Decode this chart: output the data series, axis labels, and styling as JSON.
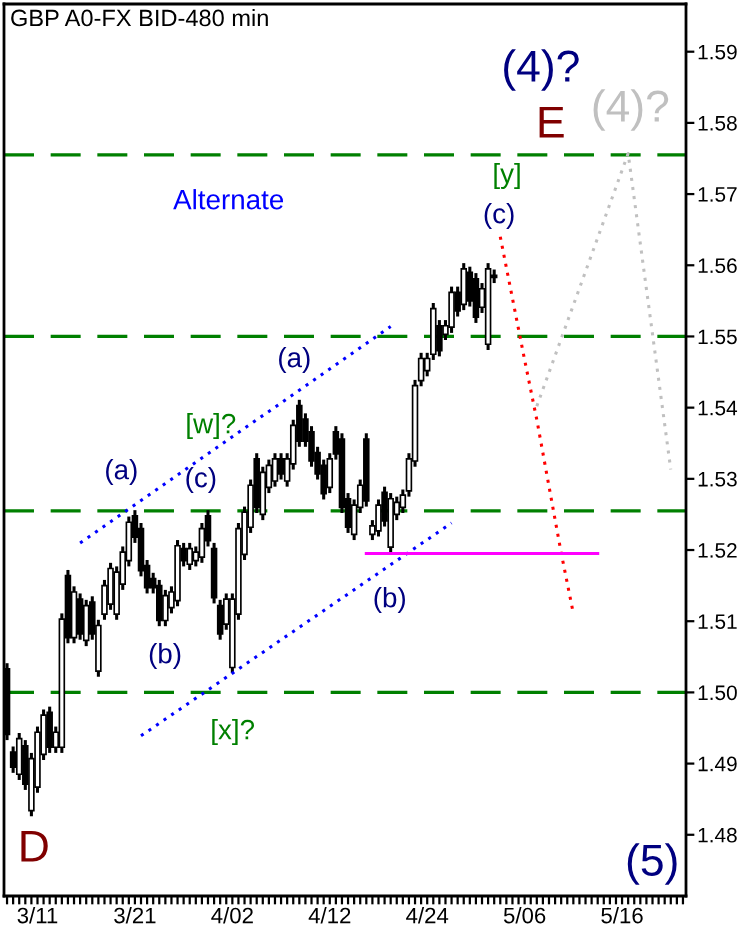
{
  "chart_data": {
    "type": "candlestick",
    "title": "GBP A0-FX BID-480 min",
    "categories": [
      null,
      null,
      null,
      null,
      null,
      "3/11",
      null,
      null,
      null,
      null,
      null,
      null,
      null,
      null,
      null,
      null,
      null,
      null,
      null,
      null,
      null,
      "3/21",
      null,
      null,
      null,
      null,
      null,
      null,
      null,
      null,
      null,
      null,
      null,
      null,
      null,
      null,
      null,
      "4/02",
      null,
      null,
      null,
      null,
      null,
      null,
      null,
      null,
      null,
      null,
      null,
      null,
      null,
      null,
      null,
      "4/12",
      null,
      null,
      null,
      null,
      null,
      null,
      null,
      null,
      null,
      null,
      null,
      null,
      null,
      null,
      null,
      "4/24",
      null,
      null,
      null,
      null,
      null,
      null,
      null,
      null,
      null,
      null,
      null,
      null,
      null,
      null,
      null,
      "5/06",
      null,
      null,
      null,
      null,
      null,
      null,
      null,
      null,
      null,
      null,
      null,
      null,
      null,
      null,
      null,
      "5/16",
      null,
      null,
      null,
      null,
      null,
      null,
      null,
      null,
      null,
      null
    ],
    "ohlc": [
      [
        1.5033,
        1.5041,
        1.4933,
        1.4941
      ],
      [
        1.4916,
        1.4924,
        1.4887,
        1.4895
      ],
      [
        1.4885,
        1.4943,
        1.4877,
        1.4935
      ],
      [
        1.4925,
        1.4933,
        1.4863,
        1.4871
      ],
      [
        1.4834,
        1.4915,
        1.4826,
        1.4907
      ],
      [
        1.4867,
        1.4952,
        1.4859,
        1.4944
      ],
      [
        1.4913,
        1.4976,
        1.4905,
        1.4968
      ],
      [
        1.4972,
        1.498,
        1.4915,
        1.4923
      ],
      [
        1.4923,
        1.4952,
        1.4915,
        1.4944
      ],
      [
        1.4923,
        1.5111,
        1.4915,
        1.5103
      ],
      [
        1.5164,
        1.5172,
        1.5069,
        1.5077
      ],
      [
        1.5077,
        1.5149,
        1.5069,
        1.5141
      ],
      [
        1.5131,
        1.5139,
        1.5074,
        1.5082
      ],
      [
        1.5073,
        1.513,
        1.5065,
        1.5122
      ],
      [
        1.5127,
        1.5135,
        1.5074,
        1.5082
      ],
      [
        1.503,
        1.5102,
        1.5022,
        1.5094
      ],
      [
        1.511,
        1.5158,
        1.5102,
        1.515
      ],
      [
        1.5124,
        1.5182,
        1.5116,
        1.5174
      ],
      [
        1.511,
        1.5177,
        1.5102,
        1.5169
      ],
      [
        1.5152,
        1.5205,
        1.5144,
        1.5197
      ],
      [
        1.5185,
        1.5247,
        1.5177,
        1.5239
      ],
      [
        1.5248,
        1.5256,
        1.521,
        1.5218
      ],
      [
        1.523,
        1.5238,
        1.5163,
        1.5171
      ],
      [
        1.5178,
        1.5186,
        1.5139,
        1.5147
      ],
      [
        1.516,
        1.5168,
        1.5139,
        1.5147
      ],
      [
        1.515,
        1.5158,
        1.5093,
        1.5101
      ],
      [
        1.5101,
        1.5144,
        1.5093,
        1.5136
      ],
      [
        1.5119,
        1.5149,
        1.5111,
        1.5141
      ],
      [
        1.5129,
        1.5214,
        1.5121,
        1.5206
      ],
      [
        1.5202,
        1.521,
        1.5177,
        1.5185
      ],
      [
        1.518,
        1.521,
        1.5172,
        1.5202
      ],
      [
        1.5185,
        1.5205,
        1.5177,
        1.5197
      ],
      [
        1.519,
        1.5238,
        1.5182,
        1.523
      ],
      [
        1.5248,
        1.5256,
        1.5205,
        1.5213
      ],
      [
        1.5202,
        1.521,
        1.5125,
        1.5133
      ],
      [
        1.5122,
        1.513,
        1.5074,
        1.5082
      ],
      [
        1.5096,
        1.5139,
        1.5088,
        1.5131
      ],
      [
        1.5035,
        1.5139,
        1.5027,
        1.5131
      ],
      [
        1.511,
        1.5238,
        1.5102,
        1.523
      ],
      [
        1.5194,
        1.5261,
        1.5186,
        1.5253
      ],
      [
        1.5232,
        1.5299,
        1.5224,
        1.5291
      ],
      [
        1.5328,
        1.5336,
        1.5252,
        1.526
      ],
      [
        1.525,
        1.5317,
        1.5242,
        1.5309
      ],
      [
        1.5288,
        1.5327,
        1.528,
        1.5319
      ],
      [
        1.5297,
        1.5336,
        1.5289,
        1.5328
      ],
      [
        1.5328,
        1.5336,
        1.5299,
        1.5307
      ],
      [
        1.5297,
        1.5336,
        1.5289,
        1.5328
      ],
      [
        1.5321,
        1.5383,
        1.5313,
        1.5375
      ],
      [
        1.5403,
        1.5411,
        1.5345,
        1.5353
      ],
      [
        1.5384,
        1.5392,
        1.5345,
        1.5353
      ],
      [
        1.5366,
        1.5374,
        1.5317,
        1.5325
      ],
      [
        1.5337,
        1.5345,
        1.5299,
        1.5307
      ],
      [
        1.5319,
        1.5327,
        1.5271,
        1.5279
      ],
      [
        1.5288,
        1.5336,
        1.528,
        1.5328
      ],
      [
        1.5366,
        1.5374,
        1.5327,
        1.5335
      ],
      [
        1.5356,
        1.5364,
        1.5252,
        1.526
      ],
      [
        1.5272,
        1.528,
        1.5224,
        1.5232
      ],
      [
        1.5222,
        1.5271,
        1.5214,
        1.5263
      ],
      [
        1.526,
        1.5299,
        1.5252,
        1.5291
      ],
      [
        1.5356,
        1.5364,
        1.5261,
        1.5269
      ],
      [
        1.5222,
        1.5242,
        1.5214,
        1.5234
      ],
      [
        1.5227,
        1.5271,
        1.5219,
        1.5263
      ],
      [
        1.5281,
        1.5289,
        1.5233,
        1.5241
      ],
      [
        1.5204,
        1.528,
        1.5196,
        1.5272
      ],
      [
        1.525,
        1.5275,
        1.5242,
        1.5267
      ],
      [
        1.526,
        1.5285,
        1.5252,
        1.5277
      ],
      [
        1.5283,
        1.5336,
        1.5275,
        1.5328
      ],
      [
        1.5325,
        1.5439,
        1.5317,
        1.5431
      ],
      [
        1.5438,
        1.5477,
        1.543,
        1.5469
      ],
      [
        1.5452,
        1.5477,
        1.5444,
        1.5469
      ],
      [
        1.5475,
        1.5547,
        1.5467,
        1.5539
      ],
      [
        1.5515,
        1.5523,
        1.5472,
        1.548
      ],
      [
        1.5503,
        1.5523,
        1.5495,
        1.5515
      ],
      [
        1.5513,
        1.557,
        1.5505,
        1.5562
      ],
      [
        1.5562,
        1.557,
        1.5528,
        1.5536
      ],
      [
        1.5545,
        1.5603,
        1.5537,
        1.5595
      ],
      [
        1.559,
        1.5598,
        1.5542,
        1.555
      ],
      [
        1.5581,
        1.5589,
        1.5519,
        1.5527
      ],
      [
        1.5541,
        1.5575,
        1.5533,
        1.5567
      ],
      [
        1.5489,
        1.5603,
        1.5481,
        1.5595
      ],
      [
        1.5586,
        1.5594,
        1.5575,
        1.5583
      ],
      null,
      null,
      null,
      null,
      null,
      null,
      null,
      null,
      null,
      null,
      null,
      null,
      null,
      null,
      null,
      null,
      null,
      null,
      null,
      null,
      null,
      null,
      null,
      null,
      null,
      null,
      null,
      null,
      null,
      null,
      null
    ],
    "series": [
      {
        "type": "line",
        "color": "#0000ff",
        "line_style": "dotted",
        "values": [
          null,
          null,
          null,
          null,
          null,
          null,
          null,
          null,
          null,
          null,
          null,
          null,
          1.521,
          null,
          null,
          null,
          null,
          null,
          null,
          null,
          null,
          null,
          null,
          null,
          null,
          null,
          null,
          null,
          null,
          null,
          null,
          null,
          null,
          null,
          null,
          null,
          null,
          null,
          null,
          null,
          null,
          null,
          null,
          null,
          null,
          null,
          null,
          null,
          null,
          null,
          null,
          null,
          null,
          null,
          null,
          null,
          null,
          null,
          null,
          null,
          null,
          null,
          null,
          1.5514,
          null,
          null,
          null,
          null,
          null,
          null,
          null,
          null,
          null,
          null,
          null,
          null,
          null,
          null,
          null,
          null,
          null,
          null,
          null,
          null,
          null,
          null,
          null,
          null,
          null,
          null,
          null,
          null,
          null,
          null,
          null,
          null,
          null,
          null,
          null,
          null,
          null,
          null,
          null,
          null,
          null,
          null,
          null,
          null,
          null,
          null,
          null,
          null
        ]
      },
      {
        "type": "line",
        "color": "#0000ff",
        "line_style": "dotted",
        "values": [
          null,
          null,
          null,
          null,
          null,
          null,
          null,
          null,
          null,
          null,
          null,
          null,
          null,
          null,
          null,
          null,
          null,
          null,
          null,
          null,
          null,
          null,
          1.4939,
          null,
          null,
          null,
          null,
          null,
          null,
          null,
          null,
          null,
          null,
          null,
          null,
          null,
          null,
          null,
          null,
          null,
          null,
          null,
          null,
          null,
          null,
          null,
          null,
          null,
          null,
          null,
          null,
          null,
          null,
          null,
          null,
          null,
          null,
          null,
          null,
          null,
          null,
          null,
          null,
          null,
          null,
          null,
          null,
          null,
          null,
          null,
          null,
          null,
          null,
          1.5238,
          null,
          null,
          null,
          null,
          null,
          null,
          null,
          null,
          null,
          null,
          null,
          null,
          null,
          null,
          null,
          null,
          null,
          null,
          null,
          null,
          null,
          null,
          null,
          null,
          null,
          null,
          null,
          null,
          null,
          null,
          null,
          null,
          null,
          null,
          null,
          null,
          null,
          null
        ]
      },
      {
        "type": "line",
        "color": "#ff0000",
        "line_style": "dotted",
        "values": [
          null,
          null,
          null,
          null,
          null,
          null,
          null,
          null,
          null,
          null,
          null,
          null,
          null,
          null,
          null,
          null,
          null,
          null,
          null,
          null,
          null,
          null,
          null,
          null,
          null,
          null,
          null,
          null,
          null,
          null,
          null,
          null,
          null,
          null,
          null,
          null,
          null,
          null,
          null,
          null,
          null,
          null,
          null,
          null,
          null,
          null,
          null,
          null,
          null,
          null,
          null,
          null,
          null,
          null,
          null,
          null,
          null,
          null,
          null,
          null,
          null,
          null,
          null,
          null,
          null,
          null,
          null,
          null,
          null,
          null,
          null,
          null,
          null,
          null,
          null,
          null,
          null,
          null,
          null,
          null,
          null,
          1.564,
          null,
          null,
          null,
          1.5467,
          null,
          1.5383,
          null,
          null,
          null,
          1.5196,
          null,
          1.5111,
          null,
          null,
          null,
          null,
          null,
          null,
          null,
          null,
          null,
          null,
          null,
          null,
          null,
          null,
          null,
          null,
          null,
          null
        ]
      },
      {
        "type": "line",
        "color": "#c0c0c0",
        "line_style": "dotted",
        "values": [
          null,
          null,
          null,
          null,
          null,
          null,
          null,
          null,
          null,
          null,
          null,
          null,
          null,
          null,
          null,
          null,
          null,
          null,
          null,
          null,
          null,
          null,
          null,
          null,
          null,
          null,
          null,
          null,
          null,
          null,
          null,
          null,
          null,
          null,
          null,
          null,
          null,
          null,
          null,
          null,
          null,
          null,
          null,
          null,
          null,
          null,
          null,
          null,
          null,
          null,
          null,
          null,
          null,
          null,
          null,
          null,
          null,
          null,
          null,
          null,
          null,
          null,
          null,
          null,
          null,
          null,
          null,
          null,
          null,
          null,
          null,
          null,
          null,
          null,
          null,
          null,
          null,
          null,
          null,
          null,
          null,
          null,
          null,
          null,
          null,
          null,
          null,
          1.5402,
          null,
          null,
          null,
          null,
          null,
          null,
          null,
          null,
          null,
          null,
          null,
          null,
          null,
          null,
          1.5757,
          null,
          null,
          null,
          null,
          null,
          null,
          1.5313,
          null,
          null
        ]
      },
      {
        "type": "line",
        "color": "#ff00ff",
        "line_style": "solid",
        "values": [
          null,
          null,
          null,
          null,
          null,
          null,
          null,
          null,
          null,
          null,
          null,
          null,
          null,
          null,
          null,
          null,
          null,
          null,
          null,
          null,
          null,
          null,
          null,
          null,
          null,
          null,
          null,
          null,
          null,
          null,
          null,
          null,
          null,
          null,
          null,
          null,
          null,
          null,
          null,
          null,
          null,
          null,
          null,
          null,
          null,
          null,
          null,
          null,
          null,
          null,
          null,
          null,
          null,
          null,
          null,
          null,
          null,
          null,
          null,
          1.5195,
          null,
          null,
          null,
          null,
          null,
          null,
          null,
          null,
          null,
          null,
          null,
          null,
          null,
          null,
          null,
          null,
          null,
          null,
          null,
          null,
          null,
          null,
          null,
          null,
          null,
          null,
          null,
          null,
          null,
          null,
          null,
          null,
          null,
          null,
          null,
          null,
          null,
          1.5195,
          null,
          null,
          null,
          null,
          null,
          null,
          null,
          null,
          null,
          null,
          null,
          null,
          null,
          null
        ]
      }
    ],
    "ref_lines": [
      {
        "axis": "y",
        "value": 1.5755,
        "color": "#008000",
        "line_style": "dashed"
      },
      {
        "axis": "y",
        "value": 1.55,
        "color": "#008000",
        "line_style": "dashed"
      },
      {
        "axis": "y",
        "value": 1.5255,
        "color": "#008000",
        "line_style": "dashed"
      },
      {
        "axis": "y",
        "value": 1.5,
        "color": "#008000",
        "line_style": "dashed"
      }
    ],
    "annotations": [
      "(4)?",
      "E",
      "(4)?",
      "[y]",
      "(c)",
      "Alternate",
      "(a)",
      "[w]?",
      "(c)",
      "(a)",
      "(b)",
      "(b)",
      "[x]?",
      "D",
      "(5)"
    ],
    "ylim": [
      1.4714,
      1.5967
    ],
    "yticks": [
      1.48,
      1.49,
      {
        "value": 1.5,
        "label": "1.50"
      },
      1.51,
      1.52,
      1.53,
      1.54,
      1.55,
      1.56,
      1.57,
      1.58,
      1.59
    ],
    "grid": false
  }
}
